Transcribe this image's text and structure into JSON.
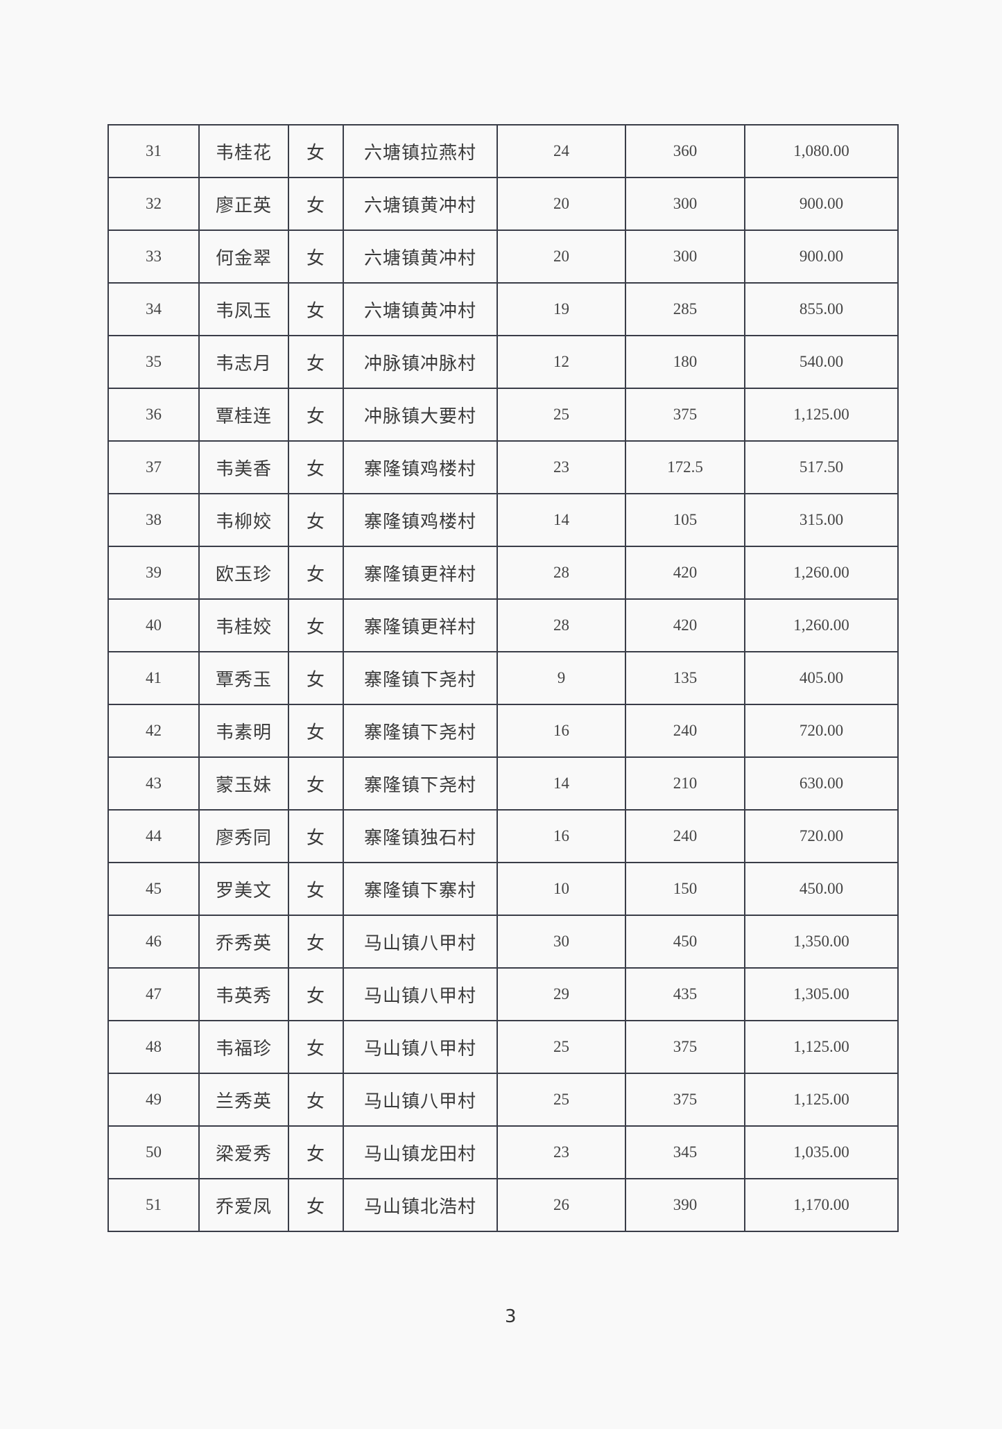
{
  "rows": [
    {
      "no": "31",
      "name": "韦桂花",
      "gender": "女",
      "address": "六塘镇拉燕村",
      "days": "24",
      "subsidy": "360",
      "amount": "1,080.00"
    },
    {
      "no": "32",
      "name": "廖正英",
      "gender": "女",
      "address": "六塘镇黄冲村",
      "days": "20",
      "subsidy": "300",
      "amount": "900.00"
    },
    {
      "no": "33",
      "name": "何金翠",
      "gender": "女",
      "address": "六塘镇黄冲村",
      "days": "20",
      "subsidy": "300",
      "amount": "900.00"
    },
    {
      "no": "34",
      "name": "韦凤玉",
      "gender": "女",
      "address": "六塘镇黄冲村",
      "days": "19",
      "subsidy": "285",
      "amount": "855.00"
    },
    {
      "no": "35",
      "name": "韦志月",
      "gender": "女",
      "address": "冲脉镇冲脉村",
      "days": "12",
      "subsidy": "180",
      "amount": "540.00"
    },
    {
      "no": "36",
      "name": "覃桂连",
      "gender": "女",
      "address": "冲脉镇大要村",
      "days": "25",
      "subsidy": "375",
      "amount": "1,125.00"
    },
    {
      "no": "37",
      "name": "韦美香",
      "gender": "女",
      "address": "寨隆镇鸡楼村",
      "days": "23",
      "subsidy": "172.5",
      "amount": "517.50"
    },
    {
      "no": "38",
      "name": "韦柳姣",
      "gender": "女",
      "address": "寨隆镇鸡楼村",
      "days": "14",
      "subsidy": "105",
      "amount": "315.00"
    },
    {
      "no": "39",
      "name": "欧玉珍",
      "gender": "女",
      "address": "寨隆镇更祥村",
      "days": "28",
      "subsidy": "420",
      "amount": "1,260.00"
    },
    {
      "no": "40",
      "name": "韦桂姣",
      "gender": "女",
      "address": "寨隆镇更祥村",
      "days": "28",
      "subsidy": "420",
      "amount": "1,260.00"
    },
    {
      "no": "41",
      "name": "覃秀玉",
      "gender": "女",
      "address": "寨隆镇下尧村",
      "days": "9",
      "subsidy": "135",
      "amount": "405.00"
    },
    {
      "no": "42",
      "name": "韦素明",
      "gender": "女",
      "address": "寨隆镇下尧村",
      "days": "16",
      "subsidy": "240",
      "amount": "720.00"
    },
    {
      "no": "43",
      "name": "蒙玉妹",
      "gender": "女",
      "address": "寨隆镇下尧村",
      "days": "14",
      "subsidy": "210",
      "amount": "630.00"
    },
    {
      "no": "44",
      "name": "廖秀同",
      "gender": "女",
      "address": "寨隆镇独石村",
      "days": "16",
      "subsidy": "240",
      "amount": "720.00"
    },
    {
      "no": "45",
      "name": "罗美文",
      "gender": "女",
      "address": "寨隆镇下寨村",
      "days": "10",
      "subsidy": "150",
      "amount": "450.00"
    },
    {
      "no": "46",
      "name": "乔秀英",
      "gender": "女",
      "address": "马山镇八甲村",
      "days": "30",
      "subsidy": "450",
      "amount": "1,350.00"
    },
    {
      "no": "47",
      "name": "韦英秀",
      "gender": "女",
      "address": "马山镇八甲村",
      "days": "29",
      "subsidy": "435",
      "amount": "1,305.00"
    },
    {
      "no": "48",
      "name": "韦福珍",
      "gender": "女",
      "address": "马山镇八甲村",
      "days": "25",
      "subsidy": "375",
      "amount": "1,125.00"
    },
    {
      "no": "49",
      "name": "兰秀英",
      "gender": "女",
      "address": "马山镇八甲村",
      "days": "25",
      "subsidy": "375",
      "amount": "1,125.00"
    },
    {
      "no": "50",
      "name": "梁爱秀",
      "gender": "女",
      "address": "马山镇龙田村",
      "days": "23",
      "subsidy": "345",
      "amount": "1,035.00"
    },
    {
      "no": "51",
      "name": "乔爱凤",
      "gender": "女",
      "address": "马山镇北浩村",
      "days": "26",
      "subsidy": "390",
      "amount": "1,170.00"
    }
  ],
  "page_number": "3"
}
